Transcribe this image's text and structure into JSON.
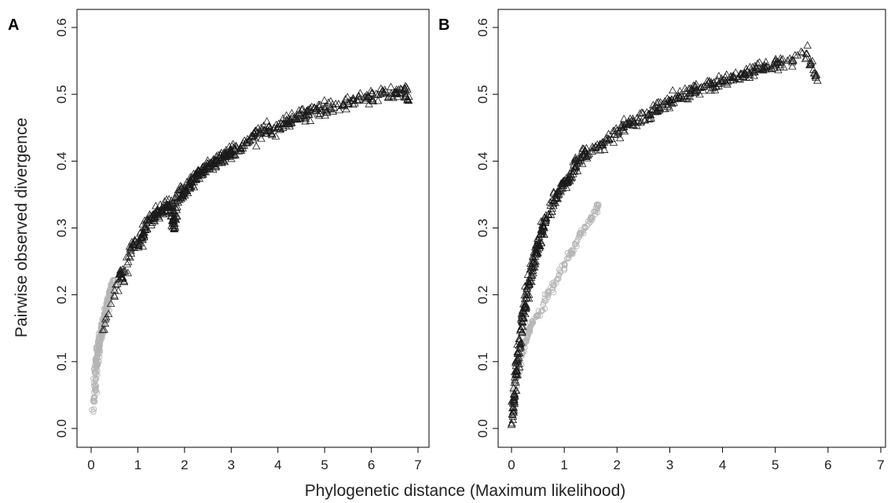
{
  "figure": {
    "xlabel": "Phylogenetic distance (Maximum likelihood)",
    "ylabel": "Pairwise observed divergence"
  },
  "chart_data": [
    {
      "type": "scatter",
      "panel_label": "A",
      "xlabel": "Phylogenetic distance (Maximum likelihood)",
      "ylabel": "Pairwise observed divergence",
      "xlim": [
        0,
        7
      ],
      "ylim": [
        0,
        0.6
      ],
      "xticks": [
        "0",
        "1",
        "2",
        "3",
        "4",
        "5",
        "6",
        "7"
      ],
      "yticks": [
        "0.0",
        "0.1",
        "0.2",
        "0.3",
        "0.4",
        "0.5",
        "0.6"
      ],
      "grid": false,
      "series": [
        {
          "marker": "circle",
          "color": "#b5b5b5",
          "points": [
            [
              0.05,
              0.025
            ],
            [
              0.06,
              0.045
            ],
            [
              0.08,
              0.06
            ],
            [
              0.09,
              0.075
            ],
            [
              0.1,
              0.085
            ],
            [
              0.11,
              0.095
            ],
            [
              0.12,
              0.1
            ],
            [
              0.13,
              0.105
            ],
            [
              0.14,
              0.11
            ],
            [
              0.15,
              0.115
            ],
            [
              0.16,
              0.12
            ],
            [
              0.17,
              0.125
            ],
            [
              0.18,
              0.13
            ],
            [
              0.19,
              0.135
            ],
            [
              0.2,
              0.14
            ],
            [
              0.22,
              0.145
            ],
            [
              0.23,
              0.15
            ],
            [
              0.25,
              0.155
            ],
            [
              0.27,
              0.16
            ],
            [
              0.28,
              0.165
            ],
            [
              0.3,
              0.17
            ],
            [
              0.32,
              0.175
            ],
            [
              0.33,
              0.18
            ],
            [
              0.35,
              0.185
            ],
            [
              0.37,
              0.19
            ],
            [
              0.38,
              0.195
            ],
            [
              0.4,
              0.2
            ],
            [
              0.42,
              0.205
            ],
            [
              0.44,
              0.21
            ],
            [
              0.46,
              0.215
            ],
            [
              0.5,
              0.222
            ]
          ]
        },
        {
          "marker": "triangle",
          "color": "#1a1a1a",
          "points": [
            [
              0.25,
              0.147
            ],
            [
              0.62,
              0.23
            ],
            [
              0.68,
              0.225
            ],
            [
              0.85,
              0.27
            ],
            [
              0.95,
              0.275
            ],
            [
              1.1,
              0.285
            ],
            [
              1.15,
              0.3
            ],
            [
              1.3,
              0.315
            ],
            [
              1.4,
              0.32
            ],
            [
              1.5,
              0.325
            ],
            [
              1.6,
              0.33
            ],
            [
              1.7,
              0.335
            ],
            [
              1.75,
              0.31
            ],
            [
              1.8,
              0.3
            ],
            [
              1.85,
              0.345
            ],
            [
              1.95,
              0.35
            ],
            [
              2.0,
              0.355
            ],
            [
              2.1,
              0.365
            ],
            [
              2.2,
              0.375
            ],
            [
              2.3,
              0.38
            ],
            [
              2.4,
              0.385
            ],
            [
              2.5,
              0.39
            ],
            [
              2.6,
              0.395
            ],
            [
              2.7,
              0.4
            ],
            [
              2.8,
              0.405
            ],
            [
              2.9,
              0.41
            ],
            [
              3.0,
              0.415
            ],
            [
              3.2,
              0.42
            ],
            [
              3.4,
              0.43
            ],
            [
              3.6,
              0.44
            ],
            [
              3.8,
              0.445
            ],
            [
              4.0,
              0.45
            ],
            [
              4.2,
              0.46
            ],
            [
              4.4,
              0.465
            ],
            [
              4.6,
              0.47
            ],
            [
              4.8,
              0.475
            ],
            [
              5.0,
              0.48
            ],
            [
              5.3,
              0.485
            ],
            [
              5.6,
              0.49
            ],
            [
              5.9,
              0.495
            ],
            [
              6.2,
              0.5
            ],
            [
              6.5,
              0.5
            ],
            [
              6.7,
              0.505
            ],
            [
              6.8,
              0.49
            ]
          ]
        }
      ]
    },
    {
      "type": "scatter",
      "panel_label": "B",
      "xlabel": "Phylogenetic distance (Maximum likelihood)",
      "ylabel": "Pairwise observed divergence",
      "xlim": [
        0,
        7
      ],
      "ylim": [
        0,
        0.6
      ],
      "xticks": [
        "0",
        "1",
        "2",
        "3",
        "4",
        "5",
        "6",
        "7"
      ],
      "yticks": [
        "0.0",
        "0.1",
        "0.2",
        "0.3",
        "0.4",
        "0.5",
        "0.6"
      ],
      "grid": false,
      "series": [
        {
          "marker": "circle",
          "color": "#b5b5b5",
          "points": [
            [
              0.02,
              0.02
            ],
            [
              0.05,
              0.05
            ],
            [
              0.1,
              0.08
            ],
            [
              0.15,
              0.1
            ],
            [
              0.2,
              0.115
            ],
            [
              0.25,
              0.13
            ],
            [
              0.3,
              0.14
            ],
            [
              0.35,
              0.15
            ],
            [
              0.4,
              0.16
            ],
            [
              0.5,
              0.17
            ],
            [
              0.6,
              0.185
            ],
            [
              0.7,
              0.2
            ],
            [
              0.8,
              0.215
            ],
            [
              0.9,
              0.23
            ],
            [
              1.0,
              0.245
            ],
            [
              1.1,
              0.26
            ],
            [
              1.2,
              0.275
            ],
            [
              1.3,
              0.29
            ],
            [
              1.4,
              0.3
            ],
            [
              1.5,
              0.315
            ],
            [
              1.6,
              0.325
            ],
            [
              1.65,
              0.335
            ]
          ]
        },
        {
          "marker": "triangle",
          "color": "#1a1a1a",
          "points": [
            [
              0.0,
              0.005
            ],
            [
              0.02,
              0.02
            ],
            [
              0.05,
              0.05
            ],
            [
              0.08,
              0.08
            ],
            [
              0.12,
              0.1
            ],
            [
              0.15,
              0.13
            ],
            [
              0.2,
              0.16
            ],
            [
              0.25,
              0.18
            ],
            [
              0.3,
              0.2
            ],
            [
              0.35,
              0.22
            ],
            [
              0.4,
              0.24
            ],
            [
              0.45,
              0.26
            ],
            [
              0.5,
              0.275
            ],
            [
              0.55,
              0.29
            ],
            [
              0.6,
              0.3
            ],
            [
              0.7,
              0.32
            ],
            [
              0.8,
              0.34
            ],
            [
              0.9,
              0.355
            ],
            [
              1.0,
              0.365
            ],
            [
              1.1,
              0.375
            ],
            [
              1.2,
              0.39
            ],
            [
              1.3,
              0.405
            ],
            [
              1.4,
              0.41
            ],
            [
              1.6,
              0.42
            ],
            [
              1.8,
              0.43
            ],
            [
              2.0,
              0.445
            ],
            [
              2.2,
              0.455
            ],
            [
              2.4,
              0.46
            ],
            [
              2.6,
              0.47
            ],
            [
              2.8,
              0.48
            ],
            [
              3.0,
              0.49
            ],
            [
              3.2,
              0.495
            ],
            [
              3.4,
              0.505
            ],
            [
              3.6,
              0.51
            ],
            [
              3.8,
              0.515
            ],
            [
              4.0,
              0.52
            ],
            [
              4.2,
              0.525
            ],
            [
              4.4,
              0.53
            ],
            [
              4.6,
              0.535
            ],
            [
              4.8,
              0.54
            ],
            [
              5.0,
              0.545
            ],
            [
              5.3,
              0.55
            ],
            [
              5.6,
              0.56
            ],
            [
              5.8,
              0.52
            ]
          ]
        }
      ]
    }
  ]
}
